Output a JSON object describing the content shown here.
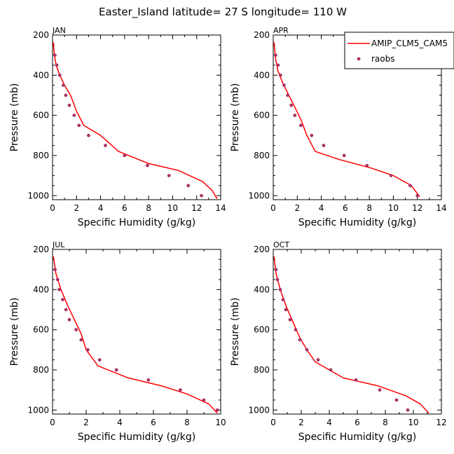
{
  "title": "Easter_Island   latitude= 27 S longitude= 110 W",
  "legend": {
    "model_label": "AMIP_CLM5_CAM5",
    "obs_label": "raobs"
  },
  "colors": {
    "model": "#ff0000",
    "obs": "#aa3366"
  },
  "chart_data": [
    {
      "type": "line",
      "panel": "JAN",
      "xlabel": "Specific Humidity (g/kg)",
      "ylabel": "Pressure (mb)",
      "xlim": [
        0,
        14
      ],
      "ylim": [
        200,
        1020
      ],
      "xticks": [
        0,
        2,
        4,
        6,
        8,
        10,
        12,
        14
      ],
      "yticks": [
        200,
        400,
        600,
        800,
        1000
      ],
      "series": [
        {
          "name": "AMIP_CLM5_CAM5",
          "x": [
            0.05,
            0.15,
            0.3,
            0.6,
            1.0,
            1.5,
            2.0,
            2.6,
            4.0,
            5.5,
            8.0,
            10.5,
            12.5,
            13.3,
            13.7
          ],
          "y": [
            235,
            300,
            350,
            400,
            450,
            500,
            580,
            650,
            700,
            780,
            840,
            875,
            930,
            975,
            1015
          ]
        },
        {
          "name": "raobs",
          "style": "points",
          "x": [
            0.2,
            0.35,
            0.6,
            0.9,
            1.1,
            1.4,
            1.8,
            2.2,
            3.0,
            4.4,
            6.0,
            7.9,
            9.7,
            11.3,
            12.4
          ],
          "y": [
            300,
            350,
            400,
            450,
            500,
            550,
            600,
            650,
            700,
            750,
            800,
            850,
            900,
            950,
            1000
          ]
        }
      ]
    },
    {
      "type": "line",
      "panel": "APR",
      "xlabel": "Specific Humidity (g/kg)",
      "ylabel": "Pressure (mb)",
      "xlim": [
        0,
        14
      ],
      "ylim": [
        200,
        1020
      ],
      "xticks": [
        0,
        2,
        4,
        6,
        8,
        10,
        12,
        14
      ],
      "yticks": [
        200,
        400,
        600,
        800,
        1000
      ],
      "series": [
        {
          "name": "AMIP_CLM5_CAM5",
          "x": [
            0.05,
            0.2,
            0.4,
            0.8,
            1.3,
            1.8,
            2.3,
            2.8,
            3.5,
            5.5,
            8.0,
            10.0,
            11.5,
            12.2
          ],
          "y": [
            235,
            320,
            380,
            440,
            500,
            560,
            620,
            700,
            780,
            820,
            860,
            900,
            950,
            1005
          ]
        },
        {
          "name": "raobs",
          "style": "points",
          "x": [
            0.2,
            0.4,
            0.6,
            0.9,
            1.2,
            1.5,
            1.8,
            2.3,
            3.2,
            4.2,
            5.9,
            7.8,
            9.8,
            11.4,
            12.0
          ],
          "y": [
            300,
            350,
            400,
            450,
            500,
            550,
            600,
            650,
            700,
            750,
            800,
            850,
            900,
            950,
            1000
          ]
        }
      ]
    },
    {
      "type": "line",
      "panel": "JUL",
      "xlabel": "Specific Humidity (g/kg)",
      "ylabel": "Pressure (mb)",
      "xlim": [
        0,
        10
      ],
      "ylim": [
        200,
        1020
      ],
      "xticks": [
        0,
        2,
        4,
        6,
        8,
        10
      ],
      "yticks": [
        200,
        400,
        600,
        800,
        1000
      ],
      "series": [
        {
          "name": "AMIP_CLM5_CAM5",
          "x": [
            0.05,
            0.2,
            0.5,
            0.9,
            1.3,
            1.7,
            2.0,
            2.7,
            4.5,
            6.5,
            8.0,
            9.3,
            9.8
          ],
          "y": [
            235,
            320,
            400,
            480,
            550,
            620,
            700,
            780,
            840,
            880,
            920,
            970,
            1015
          ]
        },
        {
          "name": "raobs",
          "style": "points",
          "x": [
            0.15,
            0.3,
            0.4,
            0.6,
            0.8,
            1.0,
            1.4,
            1.7,
            2.1,
            2.8,
            3.8,
            5.7,
            7.6,
            9.0,
            9.8
          ],
          "y": [
            300,
            350,
            400,
            450,
            500,
            550,
            600,
            650,
            700,
            750,
            800,
            850,
            900,
            950,
            1000
          ]
        }
      ]
    },
    {
      "type": "line",
      "panel": "OCT",
      "xlabel": "Specific Humidity (g/kg)",
      "ylabel": "Pressure (mb)",
      "xlim": [
        0,
        12
      ],
      "ylim": [
        200,
        1020
      ],
      "xticks": [
        0,
        2,
        4,
        6,
        8,
        10,
        12
      ],
      "yticks": [
        200,
        400,
        600,
        800,
        1000
      ],
      "series": [
        {
          "name": "AMIP_CLM5_CAM5",
          "x": [
            0.05,
            0.2,
            0.5,
            0.9,
            1.4,
            1.9,
            2.4,
            3.0,
            4.0,
            5.0,
            7.5,
            9.5,
            10.5,
            11.1
          ],
          "y": [
            235,
            320,
            400,
            480,
            560,
            640,
            700,
            760,
            800,
            840,
            880,
            930,
            970,
            1015
          ]
        },
        {
          "name": "raobs",
          "style": "points",
          "x": [
            0.2,
            0.3,
            0.5,
            0.7,
            0.9,
            1.2,
            1.6,
            1.9,
            2.4,
            3.2,
            4.1,
            5.9,
            7.6,
            8.8,
            9.6
          ],
          "y": [
            300,
            350,
            400,
            450,
            500,
            550,
            600,
            650,
            700,
            750,
            800,
            850,
            900,
            950,
            1000
          ]
        }
      ]
    }
  ]
}
